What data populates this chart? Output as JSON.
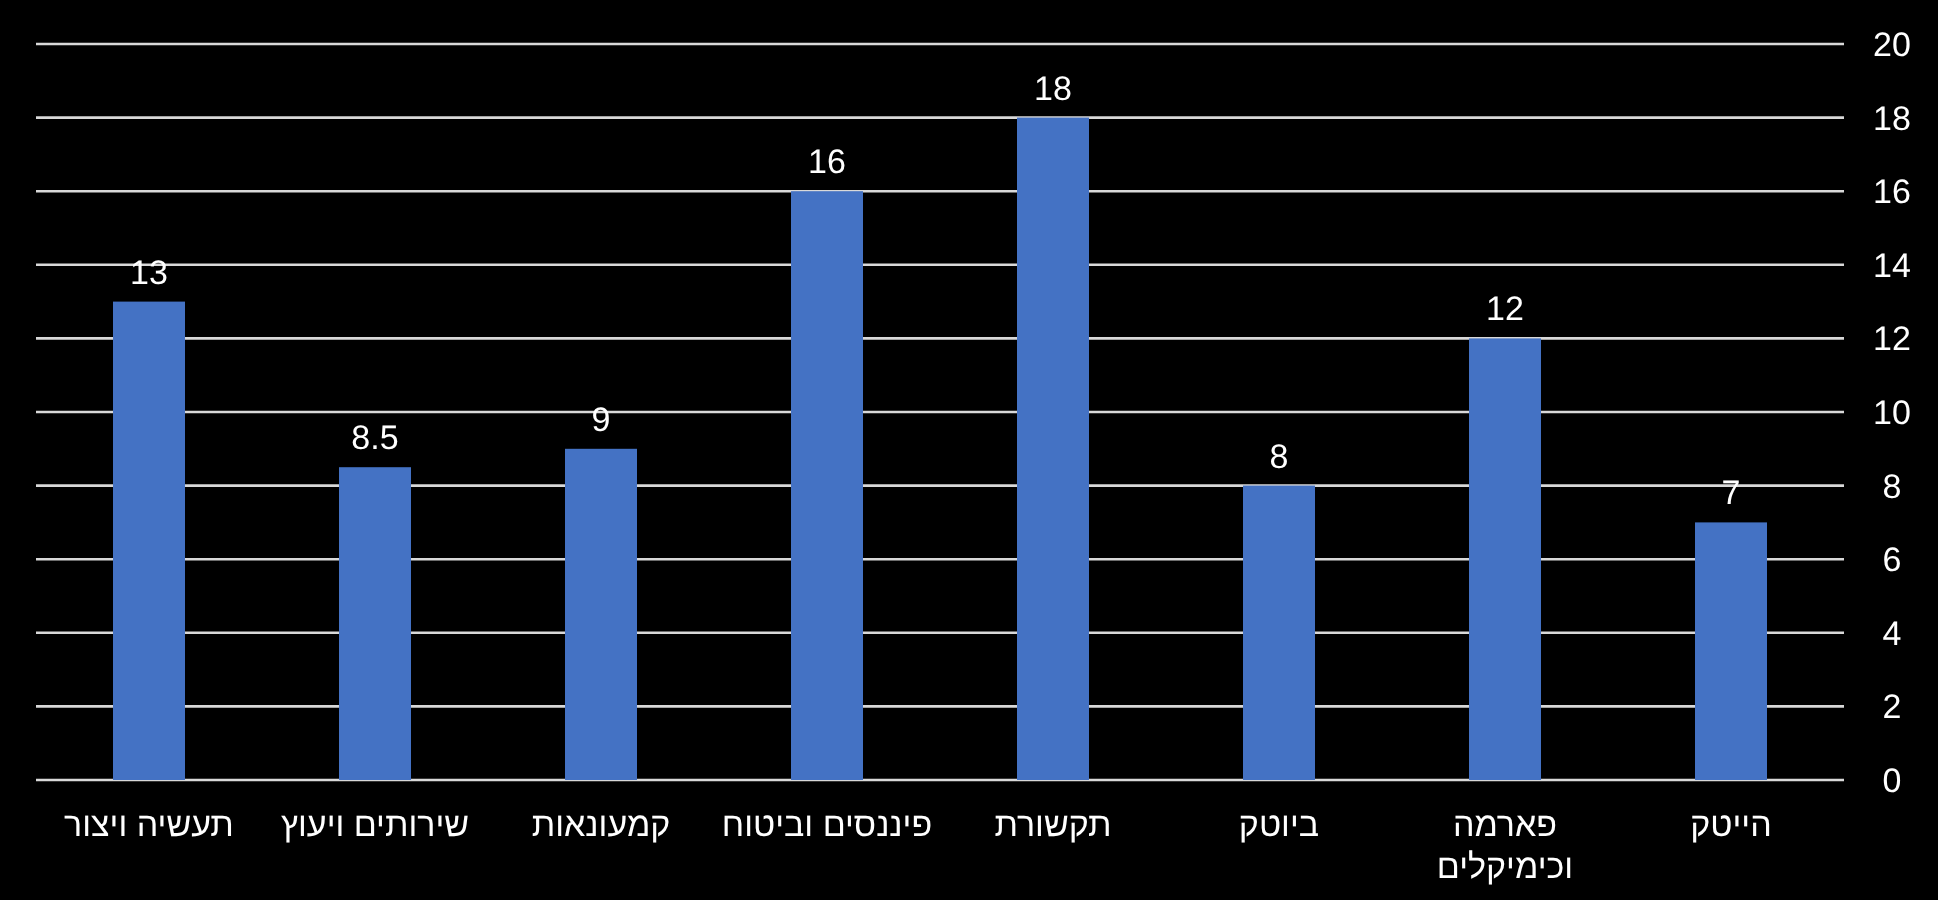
{
  "chart_data": {
    "type": "bar",
    "categories": [
      "תעשיה ויצור",
      "שירותים ויעוץ",
      "קמעונאות",
      "פיננסים וביטוח",
      "תקשורת",
      "ביוטק",
      "פארמה וכימיקלים",
      "הייטק"
    ],
    "values": [
      13,
      8.5,
      9,
      16,
      18,
      8,
      12,
      7
    ],
    "color": "#4472c4",
    "ylim": [
      0,
      20
    ],
    "yticks": [
      0,
      2,
      4,
      6,
      8,
      10,
      12,
      14,
      16,
      18,
      20
    ],
    "grid": "y",
    "data_labels": true
  }
}
